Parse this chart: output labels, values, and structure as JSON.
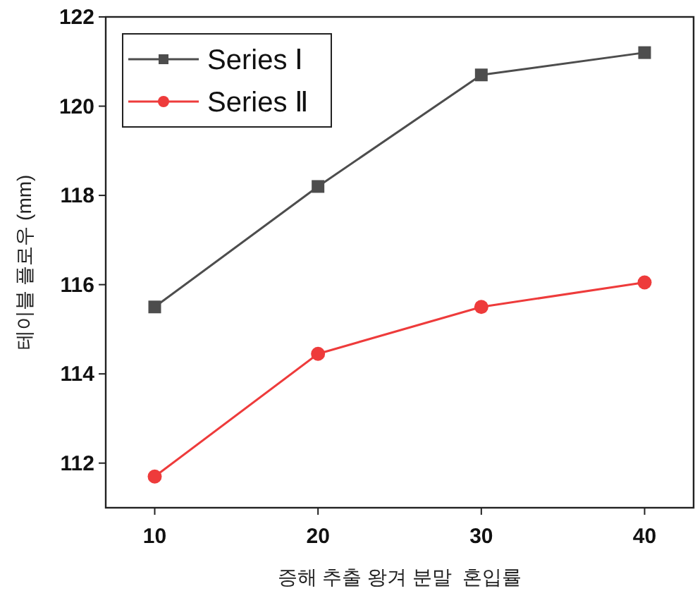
{
  "chart_data": {
    "type": "line",
    "xlabel": "증해 추출 왕겨 분말  혼입률",
    "ylabel": "테이블 플로우 (mm)",
    "x": [
      10,
      20,
      30,
      40
    ],
    "series": [
      {
        "name": "Series Ⅰ",
        "color": "#4d4d4d",
        "marker": "square",
        "values": [
          115.5,
          118.2,
          120.7,
          121.2
        ]
      },
      {
        "name": "Series Ⅱ",
        "color": "#ee3b3b",
        "marker": "circle",
        "values": [
          111.7,
          114.45,
          115.5,
          116.05
        ]
      }
    ],
    "xlim": [
      7,
      43
    ],
    "xticks": [
      10,
      20,
      30,
      40
    ],
    "ylim": [
      111,
      122
    ],
    "yticks": [
      112,
      114,
      116,
      118,
      120,
      122
    ],
    "legend": "top left",
    "grid": false
  }
}
